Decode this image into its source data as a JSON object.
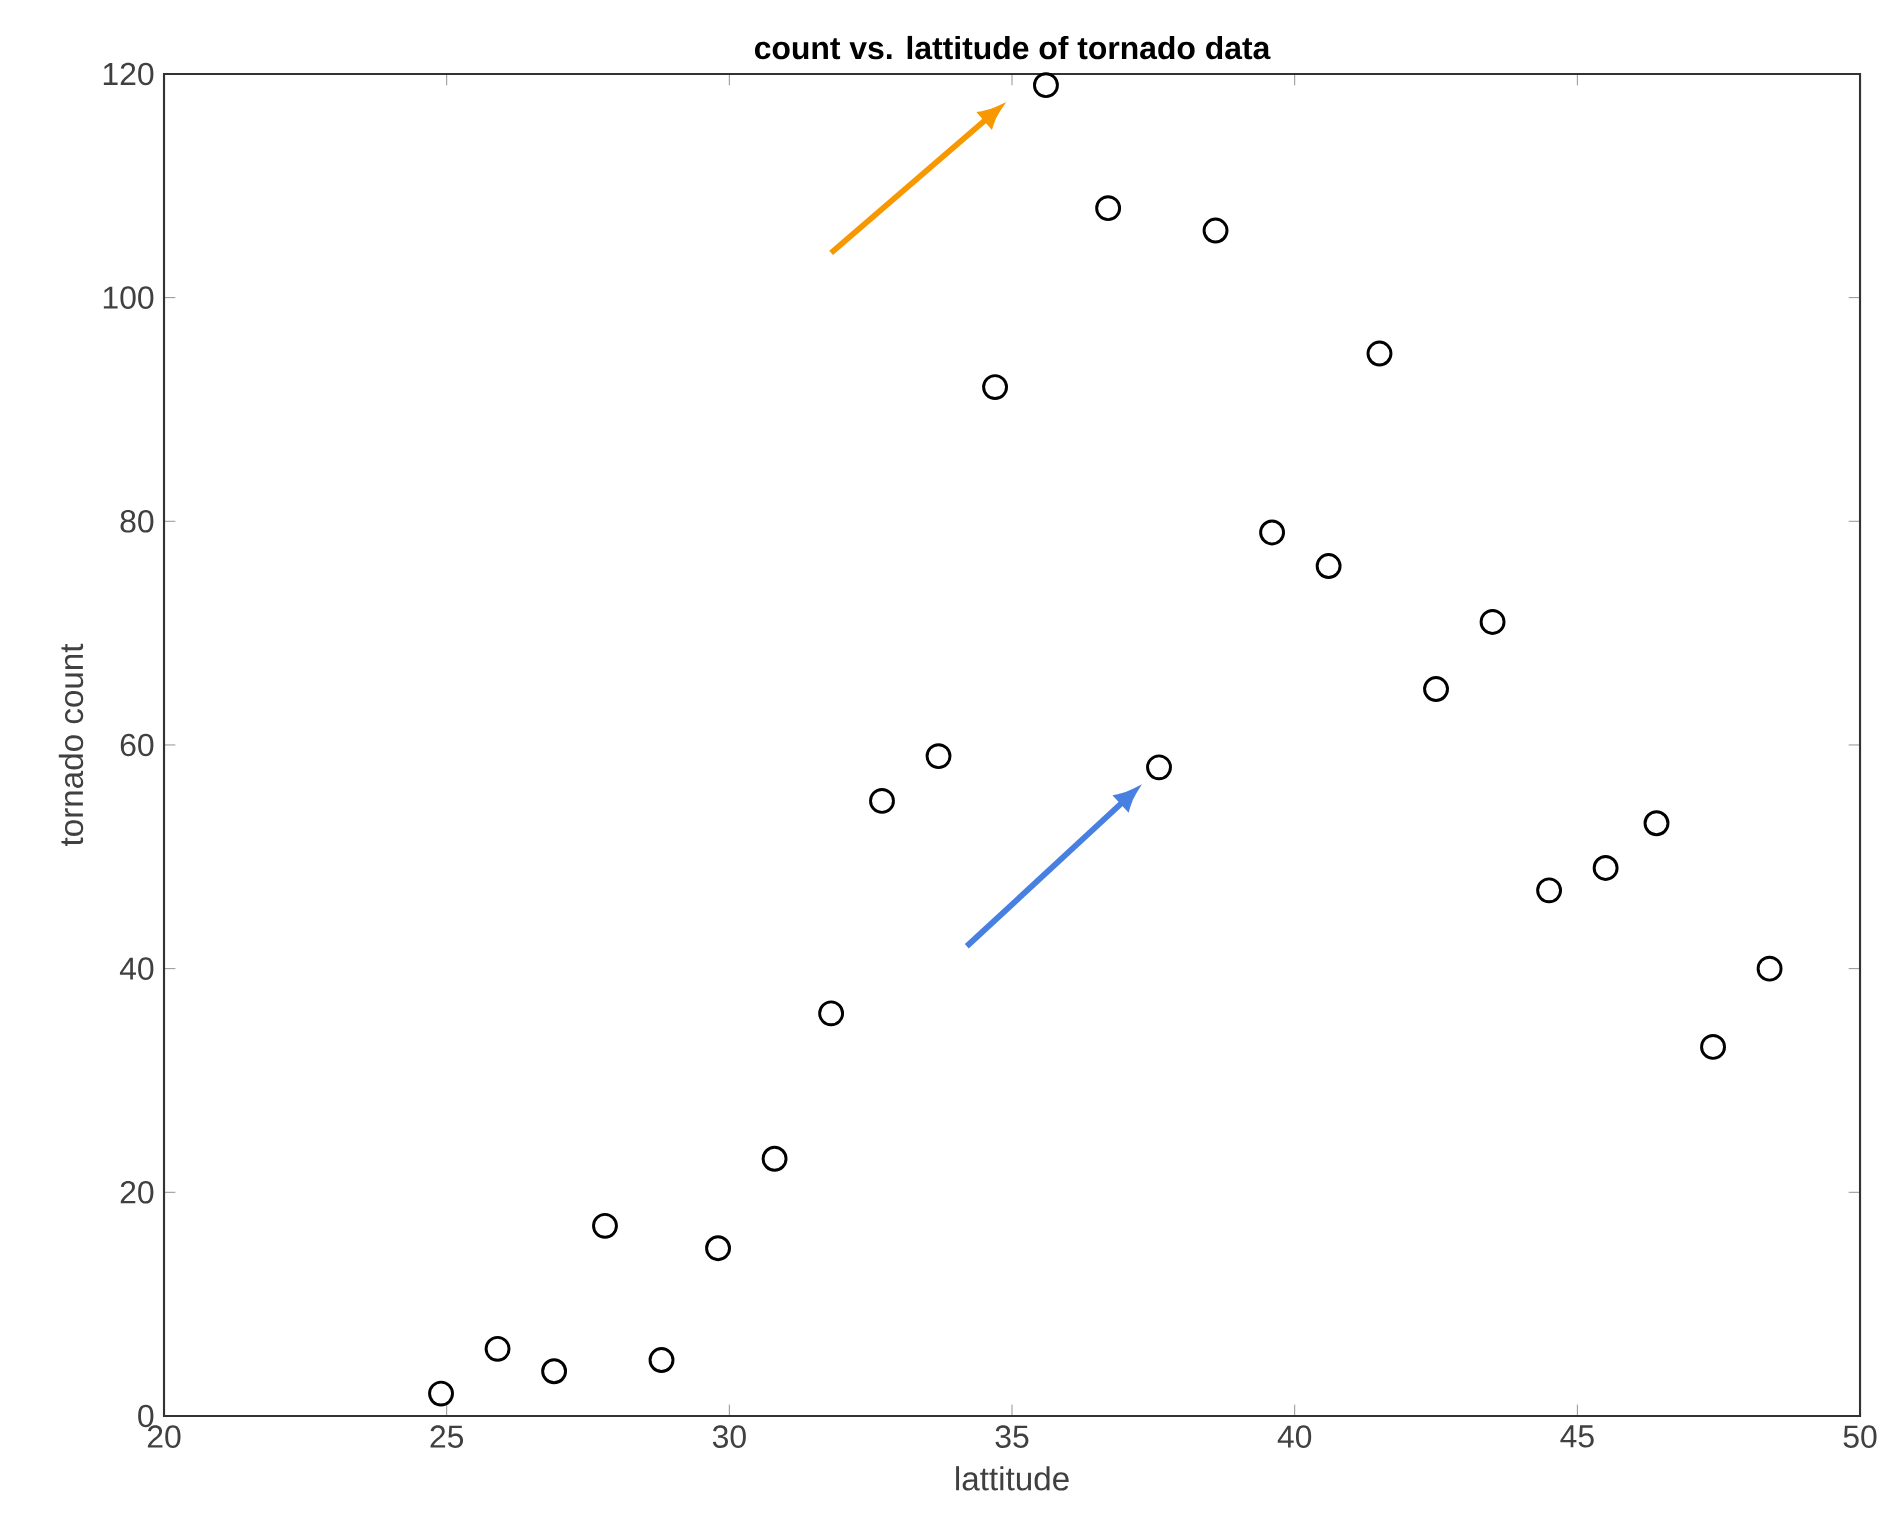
{
  "chart_data": {
    "type": "scatter",
    "title": "count vs. lattitude of tornado data",
    "xlabel": "lattitude",
    "ylabel": "tornado count",
    "x": [
      24.9,
      25.9,
      26.9,
      27.8,
      28.8,
      29.8,
      30.8,
      31.8,
      32.7,
      33.7,
      34.7,
      35.6,
      36.7,
      37.6,
      38.6,
      39.6,
      40.6,
      41.5,
      42.5,
      43.5,
      44.5,
      45.5,
      46.4,
      47.4,
      48.4
    ],
    "series": [
      {
        "color": "#000000",
        "values": [
          2,
          6,
          4,
          17,
          5,
          15,
          23,
          36,
          55,
          59,
          92,
          119,
          108,
          58,
          106,
          79,
          76,
          95,
          65,
          71,
          47,
          49,
          53,
          33,
          40
        ]
      }
    ],
    "xlim": [
      20,
      50
    ],
    "ylim": [
      0,
      120
    ],
    "xticks": [
      20,
      25,
      30,
      35,
      40,
      45,
      50
    ],
    "yticks": [
      0,
      20,
      40,
      60,
      80,
      100,
      120
    ],
    "marker": "circle"
  }
}
